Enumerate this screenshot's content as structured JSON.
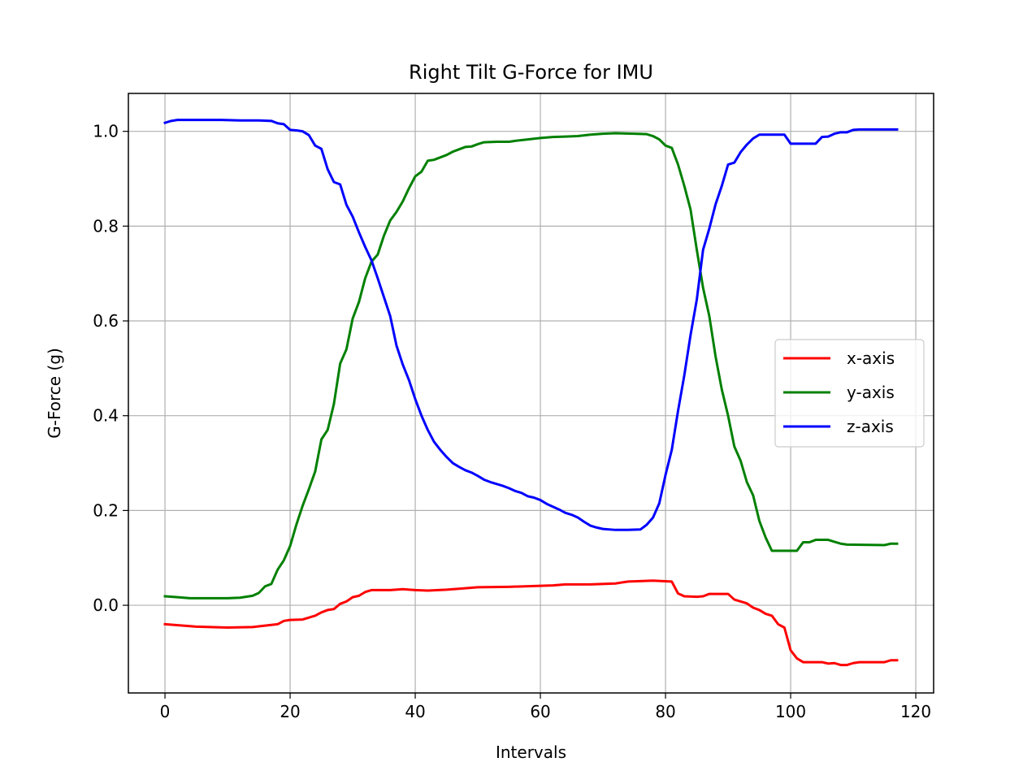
{
  "chart_data": {
    "type": "line",
    "title": "Right Tilt G-Force for IMU",
    "xlabel": "Intervals",
    "ylabel": "G-Force (g)",
    "xlim": [
      -5.85,
      122.85
    ],
    "ylim": [
      -0.185,
      1.08
    ],
    "xticks": [
      0,
      20,
      40,
      60,
      80,
      100,
      120
    ],
    "yticks": [
      0.0,
      0.2,
      0.4,
      0.6,
      0.8,
      1.0
    ],
    "xtick_labels": [
      "0",
      "20",
      "40",
      "60",
      "80",
      "100",
      "120"
    ],
    "ytick_labels": [
      "0.0",
      "0.2",
      "0.4",
      "0.6",
      "0.8",
      "1.0"
    ],
    "grid": true,
    "legend_position": "center-right",
    "series": [
      {
        "name": "x-axis",
        "color": "#ff0000",
        "points": [
          [
            0,
            -0.04
          ],
          [
            5,
            -0.045
          ],
          [
            10,
            -0.047
          ],
          [
            14,
            -0.046
          ],
          [
            16,
            -0.043
          ],
          [
            18,
            -0.04
          ],
          [
            19,
            -0.033
          ],
          [
            20,
            -0.031
          ],
          [
            22,
            -0.03
          ],
          [
            24,
            -0.022
          ],
          [
            25,
            -0.015
          ],
          [
            26,
            -0.01
          ],
          [
            27,
            -0.008
          ],
          [
            28,
            0.003
          ],
          [
            29,
            0.008
          ],
          [
            30,
            0.017
          ],
          [
            31,
            0.02
          ],
          [
            32,
            0.028
          ],
          [
            33,
            0.032
          ],
          [
            36,
            0.032
          ],
          [
            38,
            0.034
          ],
          [
            40,
            0.032
          ],
          [
            42,
            0.031
          ],
          [
            45,
            0.033
          ],
          [
            48,
            0.036
          ],
          [
            50,
            0.038
          ],
          [
            55,
            0.039
          ],
          [
            60,
            0.041
          ],
          [
            62,
            0.042
          ],
          [
            64,
            0.044
          ],
          [
            68,
            0.044
          ],
          [
            72,
            0.046
          ],
          [
            74,
            0.05
          ],
          [
            78,
            0.052
          ],
          [
            81,
            0.05
          ],
          [
            82,
            0.025
          ],
          [
            83,
            0.019
          ],
          [
            85,
            0.018
          ],
          [
            86,
            0.019
          ],
          [
            87,
            0.024
          ],
          [
            90,
            0.024
          ],
          [
            91,
            0.012
          ],
          [
            93,
            0.004
          ],
          [
            94,
            -0.005
          ],
          [
            95,
            -0.01
          ],
          [
            96,
            -0.018
          ],
          [
            97,
            -0.022
          ],
          [
            98,
            -0.04
          ],
          [
            99,
            -0.047
          ],
          [
            100,
            -0.095
          ],
          [
            101,
            -0.112
          ],
          [
            102,
            -0.12
          ],
          [
            104,
            -0.12
          ],
          [
            105,
            -0.12
          ],
          [
            106,
            -0.123
          ],
          [
            107,
            -0.122
          ],
          [
            108,
            -0.126
          ],
          [
            109,
            -0.126
          ],
          [
            110,
            -0.122
          ],
          [
            111,
            -0.12
          ],
          [
            115,
            -0.12
          ],
          [
            116,
            -0.116
          ],
          [
            117,
            -0.116
          ]
        ]
      },
      {
        "name": "y-axis",
        "color": "#008000",
        "points": [
          [
            0,
            0.019
          ],
          [
            2,
            0.017
          ],
          [
            4,
            0.015
          ],
          [
            6,
            0.015
          ],
          [
            10,
            0.015
          ],
          [
            12,
            0.016
          ],
          [
            14,
            0.02
          ],
          [
            15,
            0.026
          ],
          [
            16,
            0.04
          ],
          [
            17,
            0.045
          ],
          [
            18,
            0.075
          ],
          [
            19,
            0.095
          ],
          [
            20,
            0.125
          ],
          [
            21,
            0.17
          ],
          [
            22,
            0.21
          ],
          [
            23,
            0.245
          ],
          [
            24,
            0.282
          ],
          [
            25,
            0.35
          ],
          [
            26,
            0.37
          ],
          [
            27,
            0.425
          ],
          [
            28,
            0.51
          ],
          [
            29,
            0.54
          ],
          [
            30,
            0.605
          ],
          [
            31,
            0.64
          ],
          [
            32,
            0.69
          ],
          [
            33,
            0.725
          ],
          [
            34,
            0.74
          ],
          [
            35,
            0.78
          ],
          [
            36,
            0.812
          ],
          [
            37,
            0.83
          ],
          [
            38,
            0.852
          ],
          [
            39,
            0.88
          ],
          [
            40,
            0.905
          ],
          [
            41,
            0.915
          ],
          [
            42,
            0.938
          ],
          [
            43,
            0.94
          ],
          [
            45,
            0.95
          ],
          [
            46,
            0.957
          ],
          [
            47,
            0.962
          ],
          [
            48,
            0.967
          ],
          [
            49,
            0.968
          ],
          [
            50,
            0.973
          ],
          [
            51,
            0.977
          ],
          [
            53,
            0.978
          ],
          [
            55,
            0.978
          ],
          [
            56,
            0.98
          ],
          [
            58,
            0.983
          ],
          [
            60,
            0.986
          ],
          [
            62,
            0.988
          ],
          [
            64,
            0.989
          ],
          [
            66,
            0.99
          ],
          [
            68,
            0.993
          ],
          [
            70,
            0.995
          ],
          [
            72,
            0.996
          ],
          [
            75,
            0.995
          ],
          [
            77,
            0.994
          ],
          [
            78,
            0.99
          ],
          [
            79,
            0.983
          ],
          [
            80,
            0.97
          ],
          [
            81,
            0.965
          ],
          [
            82,
            0.93
          ],
          [
            83,
            0.885
          ],
          [
            84,
            0.835
          ],
          [
            85,
            0.75
          ],
          [
            86,
            0.67
          ],
          [
            87,
            0.61
          ],
          [
            88,
            0.525
          ],
          [
            89,
            0.455
          ],
          [
            90,
            0.4
          ],
          [
            91,
            0.335
          ],
          [
            92,
            0.305
          ],
          [
            93,
            0.26
          ],
          [
            94,
            0.232
          ],
          [
            95,
            0.178
          ],
          [
            96,
            0.143
          ],
          [
            97,
            0.115
          ],
          [
            100,
            0.115
          ],
          [
            101,
            0.115
          ],
          [
            102,
            0.133
          ],
          [
            103,
            0.133
          ],
          [
            104,
            0.138
          ],
          [
            106,
            0.138
          ],
          [
            107,
            0.134
          ],
          [
            108,
            0.13
          ],
          [
            109,
            0.128
          ],
          [
            115,
            0.127
          ],
          [
            116,
            0.13
          ],
          [
            117,
            0.13
          ]
        ]
      },
      {
        "name": "z-axis",
        "color": "#0000ff",
        "points": [
          [
            0,
            1.018
          ],
          [
            1,
            1.022
          ],
          [
            2,
            1.024
          ],
          [
            5,
            1.024
          ],
          [
            9,
            1.024
          ],
          [
            12,
            1.023
          ],
          [
            15,
            1.023
          ],
          [
            17,
            1.022
          ],
          [
            18,
            1.017
          ],
          [
            19,
            1.015
          ],
          [
            20,
            1.003
          ],
          [
            21,
            1.002
          ],
          [
            22,
            1.0
          ],
          [
            23,
            0.992
          ],
          [
            24,
            0.97
          ],
          [
            25,
            0.963
          ],
          [
            26,
            0.92
          ],
          [
            27,
            0.893
          ],
          [
            28,
            0.888
          ],
          [
            29,
            0.845
          ],
          [
            30,
            0.82
          ],
          [
            31,
            0.787
          ],
          [
            32,
            0.756
          ],
          [
            33,
            0.728
          ],
          [
            34,
            0.69
          ],
          [
            35,
            0.65
          ],
          [
            36,
            0.61
          ],
          [
            37,
            0.548
          ],
          [
            38,
            0.508
          ],
          [
            39,
            0.475
          ],
          [
            40,
            0.435
          ],
          [
            41,
            0.4
          ],
          [
            42,
            0.37
          ],
          [
            43,
            0.345
          ],
          [
            44,
            0.328
          ],
          [
            45,
            0.313
          ],
          [
            46,
            0.3
          ],
          [
            47,
            0.292
          ],
          [
            48,
            0.285
          ],
          [
            49,
            0.28
          ],
          [
            50,
            0.273
          ],
          [
            51,
            0.265
          ],
          [
            52,
            0.26
          ],
          [
            54,
            0.252
          ],
          [
            55,
            0.247
          ],
          [
            56,
            0.241
          ],
          [
            57,
            0.237
          ],
          [
            58,
            0.23
          ],
          [
            59,
            0.227
          ],
          [
            60,
            0.222
          ],
          [
            61,
            0.214
          ],
          [
            62,
            0.208
          ],
          [
            63,
            0.202
          ],
          [
            64,
            0.195
          ],
          [
            65,
            0.191
          ],
          [
            66,
            0.185
          ],
          [
            67,
            0.176
          ],
          [
            68,
            0.168
          ],
          [
            69,
            0.164
          ],
          [
            70,
            0.161
          ],
          [
            72,
            0.159
          ],
          [
            74,
            0.159
          ],
          [
            76,
            0.16
          ],
          [
            77,
            0.17
          ],
          [
            78,
            0.185
          ],
          [
            79,
            0.215
          ],
          [
            80,
            0.275
          ],
          [
            81,
            0.328
          ],
          [
            82,
            0.41
          ],
          [
            83,
            0.485
          ],
          [
            84,
            0.57
          ],
          [
            85,
            0.645
          ],
          [
            86,
            0.75
          ],
          [
            87,
            0.795
          ],
          [
            88,
            0.846
          ],
          [
            89,
            0.885
          ],
          [
            90,
            0.93
          ],
          [
            91,
            0.934
          ],
          [
            92,
            0.956
          ],
          [
            93,
            0.972
          ],
          [
            94,
            0.985
          ],
          [
            95,
            0.993
          ],
          [
            98,
            0.993
          ],
          [
            99,
            0.993
          ],
          [
            100,
            0.974
          ],
          [
            101,
            0.974
          ],
          [
            104,
            0.974
          ],
          [
            105,
            0.988
          ],
          [
            106,
            0.989
          ],
          [
            107,
            0.995
          ],
          [
            108,
            0.998
          ],
          [
            109,
            0.998
          ],
          [
            110,
            1.003
          ],
          [
            111,
            1.004
          ],
          [
            117,
            1.004
          ]
        ]
      }
    ]
  }
}
